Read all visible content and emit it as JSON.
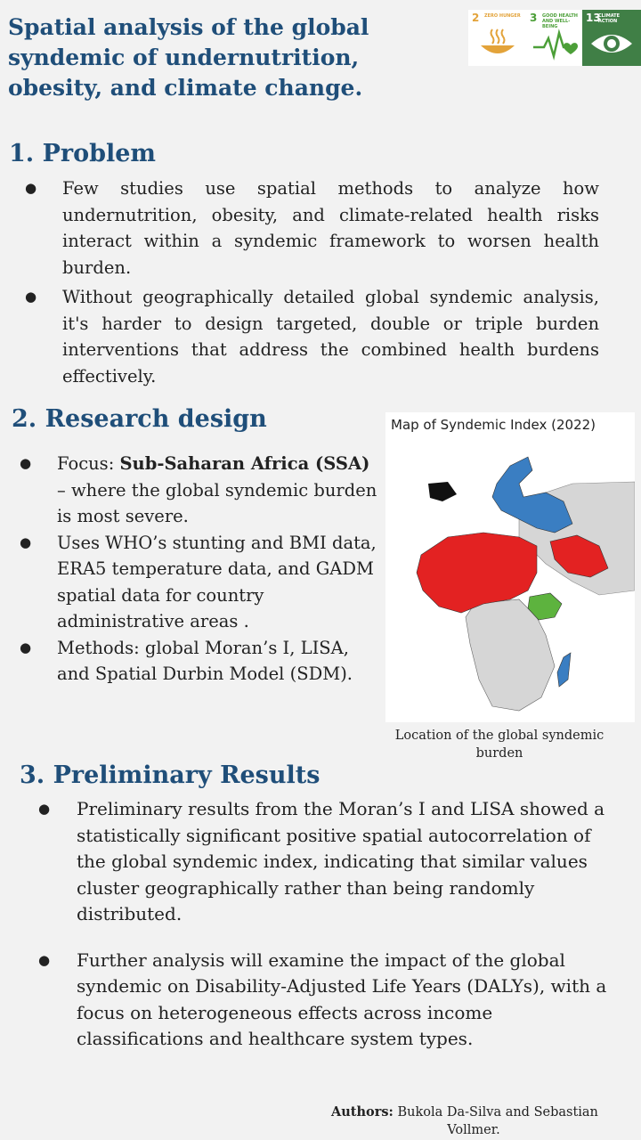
{
  "title": "Spatial analysis of the global syndemic of undernutrition, obesity, and climate change.",
  "sdg_icons": [
    {
      "number": "2",
      "label": "ZERO HUNGER",
      "icon": "bowl-icon",
      "color": "#e3a33a"
    },
    {
      "number": "3",
      "label": "GOOD HEALTH AND WELL-BEING",
      "icon": "heartbeat-icon",
      "color": "#4c9f38"
    },
    {
      "number": "13",
      "label": "CLIMATE ACTION",
      "icon": "eye-globe-icon",
      "color": "#407f46"
    }
  ],
  "problem": {
    "heading": "1. Problem",
    "bullets": [
      "Few studies use spatial methods to analyze how undernutrition, obesity, and climate-related health risks interact within a syndemic framework to worsen health burden.",
      "Without geographically detailed global syndemic analysis, it's harder to design targeted, double or triple burden interventions that address the combined health burdens effectively."
    ]
  },
  "research_design": {
    "heading": "2. Research design",
    "bullet1_prefix": "Focus: ",
    "bullet1_bold": "Sub-Saharan Africa (SSA)",
    "bullet1_rest": " – where the global syndemic burden is most severe.",
    "bullet2": "Uses WHO’s stunting and BMI data, ERA5 temperature data, and GADM spatial data for country administrative areas .",
    "bullet3": "Methods: global Moran’s I, LISA, and Spatial Durbin Model (SDM)."
  },
  "map": {
    "title": "Map of Syndemic Index (2022)",
    "caption": "Location of the global syndemic burden",
    "colors": {
      "high": "#e32222",
      "low": "#3a7ec2",
      "mid": "#5db33e",
      "none": "#d6d6d6"
    }
  },
  "results": {
    "heading": "3. Preliminary Results",
    "bullets": [
      "Preliminary results from the Moran’s I and LISA showed a statistically significant positive spatial autocorrelation of the global syndemic index, indicating that similar values cluster geographically rather than being randomly distributed.",
      "Further analysis will examine the impact of the global syndemic on Disability-Adjusted Life Years (DALYs), with a focus on heterogeneous effects across income classifications and healthcare system types."
    ]
  },
  "authors": {
    "label": "Authors:",
    "names_line1": " Bukola Da-Silva  and Sebastian",
    "names_line2": "Vollmer."
  },
  "bullet_char": "●"
}
